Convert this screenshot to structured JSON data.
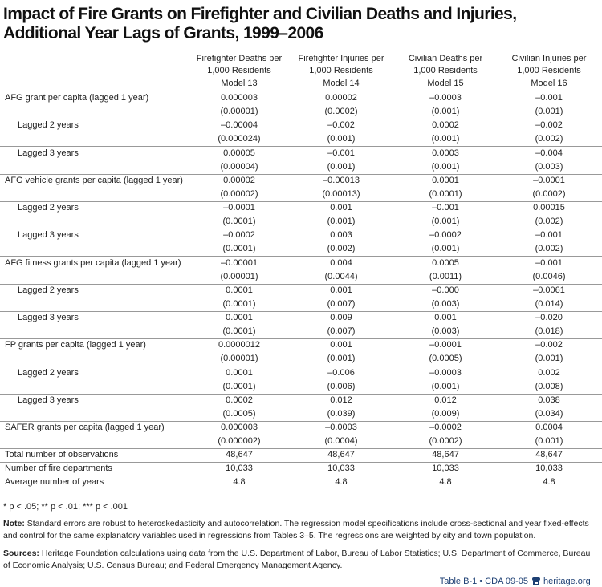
{
  "title": [
    "Impact of Fire Grants on Firefighter and Civilian Deaths and Injuries,",
    "Additional Year Lags of Grants, 1999–2006"
  ],
  "columns": [
    {
      "header": [
        "Firefighter Deaths per",
        "1,000 Residents"
      ],
      "model": "Model 13"
    },
    {
      "header": [
        "Firefighter Injuries per",
        "1,000 Residents"
      ],
      "model": "Model 14"
    },
    {
      "header": [
        "Civilian Deaths per",
        "1,000 Residents"
      ],
      "model": "Model 15"
    },
    {
      "header": [
        "Civilian Injuries per",
        "1,000 Residents"
      ],
      "model": "Model 16"
    }
  ],
  "rows": [
    {
      "label": "AFG grant per capita (lagged 1 year)",
      "indent": false,
      "values": [
        "0.000003",
        "0.00002",
        "–0.0003",
        "–0.001"
      ],
      "errors": [
        "(0.00001)",
        "(0.0002)",
        "(0.001)",
        "(0.001)"
      ]
    },
    {
      "label": "Lagged 2 years",
      "indent": true,
      "values": [
        "–0.00004",
        "–0.002",
        "0.0002",
        "–0.002"
      ],
      "errors": [
        "(0.000024)",
        "(0.001)",
        "(0.001)",
        "(0.002)"
      ]
    },
    {
      "label": "Lagged 3 years",
      "indent": true,
      "values": [
        "0.00005",
        "–0.001",
        "0.0003",
        "–0.004"
      ],
      "errors": [
        "(0.00004)",
        "(0.001)",
        "(0.001)",
        "(0.003)"
      ]
    },
    {
      "label": "AFG vehicle grants per capita (lagged 1 year)",
      "indent": false,
      "values": [
        "0.00002",
        "–0.00013",
        "0.0001",
        "–0.0001"
      ],
      "errors": [
        "(0.00002)",
        "(0.00013)",
        "(0.0001)",
        "(0.0002)"
      ]
    },
    {
      "label": "Lagged 2 years",
      "indent": true,
      "values": [
        "–0.0001",
        "0.001",
        "–0.001",
        "0.00015"
      ],
      "errors": [
        "(0.0001)",
        "(0.001)",
        "(0.001)",
        "(0.002)"
      ]
    },
    {
      "label": "Lagged 3 years",
      "indent": true,
      "values": [
        "–0.0002",
        "0.003",
        "–0.0002",
        "–0.001"
      ],
      "errors": [
        "(0.0001)",
        "(0.002)",
        "(0.001)",
        "(0.002)"
      ]
    },
    {
      "label": "AFG fitness grants per capita (lagged 1 year)",
      "indent": false,
      "values": [
        "–0.00001",
        "0.004",
        "0.0005",
        "–0.001"
      ],
      "errors": [
        "(0.00001)",
        "(0.0044)",
        "(0.0011)",
        "(0.0046)"
      ]
    },
    {
      "label": "Lagged 2 years",
      "indent": true,
      "values": [
        "0.0001",
        "0.001",
        "–0.000",
        "–0.0061"
      ],
      "errors": [
        "(0.0001)",
        "(0.007)",
        "(0.003)",
        "(0.014)"
      ]
    },
    {
      "label": "Lagged 3 years",
      "indent": true,
      "values": [
        "0.0001",
        "0.009",
        "0.001",
        "–0.020"
      ],
      "errors": [
        "(0.0001)",
        "(0.007)",
        "(0.003)",
        "(0.018)"
      ]
    },
    {
      "label": "FP grants per capita (lagged 1 year)",
      "indent": false,
      "values": [
        "0.0000012",
        "0.001",
        "–0.0001",
        "–0.002"
      ],
      "errors": [
        "(0.00001)",
        "(0.001)",
        "(0.0005)",
        "(0.001)"
      ]
    },
    {
      "label": "Lagged 2 years",
      "indent": true,
      "values": [
        "0.0001",
        "–0.006",
        "–0.0003",
        "0.002"
      ],
      "errors": [
        "(0.0001)",
        "(0.006)",
        "(0.001)",
        "(0.008)"
      ]
    },
    {
      "label": "Lagged 3 years",
      "indent": true,
      "values": [
        "0.0002",
        "0.012",
        "0.012",
        "0.038"
      ],
      "errors": [
        "(0.0005)",
        "(0.039)",
        "(0.009)",
        "(0.034)"
      ]
    },
    {
      "label": "SAFER grants per capita (lagged 1 year)",
      "indent": false,
      "values": [
        "0.000003",
        "–0.0003",
        "–0.0002",
        "0.0004"
      ],
      "errors": [
        "(0.000002)",
        "(0.0004)",
        "(0.0002)",
        "(0.001)"
      ]
    }
  ],
  "summary": [
    {
      "label": "Total number of observations",
      "values": [
        "48,647",
        "48,647",
        "48,647",
        "48,647"
      ]
    },
    {
      "label": "Number of fire departments",
      "values": [
        "10,033",
        "10,033",
        "10,033",
        "10,033"
      ]
    },
    {
      "label": "Average number of years",
      "values": [
        "4.8",
        "4.8",
        "4.8",
        "4.8"
      ]
    }
  ],
  "significance": "* p < .05; ** p < .01; *** p < .001",
  "note": {
    "label": "Note:",
    "text": "Standard errors are robust to heteroskedasticity and autocorrelation. The regression model specifications include cross-sectional and year fixed-effects and control for the same explanatory variables used in regressions from Tables 3–5. The regressions are weighted by city and town population."
  },
  "sources": {
    "label": "Sources:",
    "text": "Heritage Foundation calculations using data from the U.S. Department of Labor, Bureau of Labor Statistics; U.S. Department of Commerce, Bureau of Economic Analysis; U.S. Census Bureau; and Federal Emergency Management Agency."
  },
  "footer": {
    "table_id": "Table B-1 • CDA 09-05",
    "site": "heritage.org"
  }
}
